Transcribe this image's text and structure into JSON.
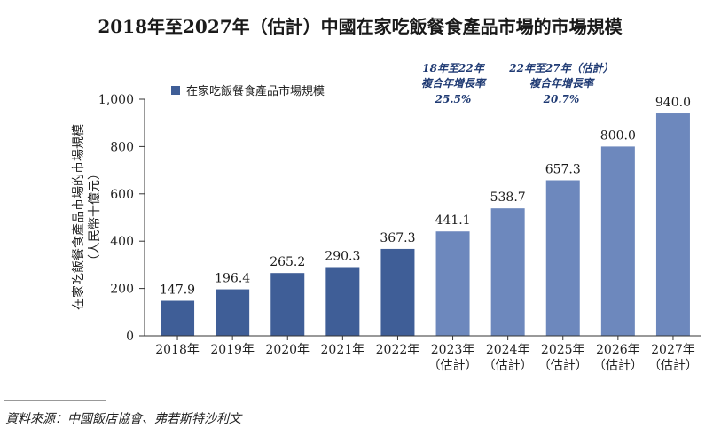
{
  "chart_data": {
    "type": "bar",
    "title": "2018年至2027年（估計）中國在家吃飯餐食產品市場的市場規模",
    "ylabel_line1": "在家吃飯餐食產品市場的市場規模",
    "ylabel_line2": "（人民幣十億元）",
    "legend_label": "在家吃飯餐食產品市場規模",
    "legend_placement": "top-left",
    "ylim": [
      0,
      1000
    ],
    "y_ticks": [
      "0",
      "200",
      "400",
      "600",
      "800",
      "1,000"
    ],
    "y_tick_values": [
      0,
      200,
      400,
      600,
      800,
      1000
    ],
    "categories": [
      {
        "year": "2018年",
        "note": ""
      },
      {
        "year": "2019年",
        "note": ""
      },
      {
        "year": "2020年",
        "note": ""
      },
      {
        "year": "2021年",
        "note": ""
      },
      {
        "year": "2022年",
        "note": ""
      },
      {
        "year": "2023年",
        "note": "（估計）"
      },
      {
        "year": "2024年",
        "note": "（估計）"
      },
      {
        "year": "2025年",
        "note": "（估計）"
      },
      {
        "year": "2026年",
        "note": "（估計）"
      },
      {
        "year": "2027年",
        "note": "（估計）"
      }
    ],
    "values": [
      147.9,
      196.4,
      265.2,
      290.3,
      367.3,
      441.1,
      538.7,
      657.3,
      800.0,
      940.0
    ],
    "value_labels": [
      "147.9",
      "196.4",
      "265.2",
      "290.3",
      "367.3",
      "441.1",
      "538.7",
      "657.3",
      "800.0",
      "940.0"
    ],
    "estimated": [
      false,
      false,
      false,
      false,
      false,
      true,
      true,
      true,
      true,
      true
    ],
    "colors": {
      "historical": "#3f5e97",
      "estimated": "#6d88bd",
      "legend": "#3f5e97"
    },
    "grid": false,
    "annotations": [
      {
        "line1": "18年至22年",
        "line2": "複合年增長率",
        "line3": "25.5%"
      },
      {
        "line1": "22年至27年（估計）",
        "line2": "複合年增長率",
        "line3": "20.7%"
      }
    ]
  },
  "source": "資料來源：中國飯店協會、弗若斯特沙利文"
}
